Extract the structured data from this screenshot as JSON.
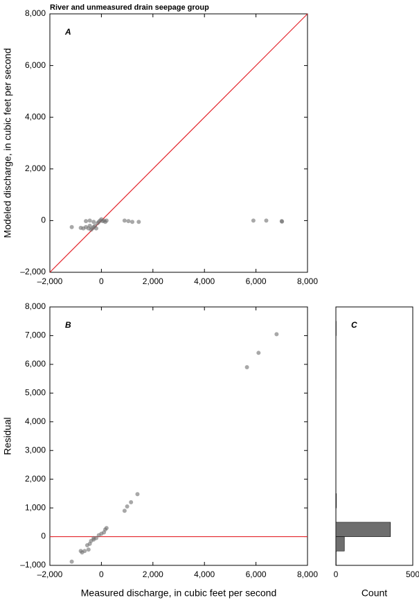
{
  "title": "River and unmeasured drain seepage group",
  "chart_data": [
    {
      "type": "scatter",
      "panel_label": "A",
      "ylabel": "Modeled discharge, in cubic feet per second",
      "xlim": [
        -2000,
        8000
      ],
      "ylim": [
        -2000,
        8000
      ],
      "xticks": [
        {
          "value": -2000,
          "label": "–2,000"
        },
        0,
        {
          "value": 2000,
          "label": "2,000"
        },
        {
          "value": 4000,
          "label": "4,000"
        },
        {
          "value": 6000,
          "label": "6,000"
        },
        {
          "value": 8000,
          "label": "8,000"
        }
      ],
      "yticks": [
        {
          "value": -2000,
          "label": "–2,000"
        },
        0,
        {
          "value": 2000,
          "label": "2,000"
        },
        {
          "value": 4000,
          "label": "4,000"
        },
        {
          "value": 6000,
          "label": "6,000"
        },
        {
          "value": 8000,
          "label": "8,000"
        }
      ],
      "color": "#6e6e6e",
      "reference_color": "#e3242b",
      "x": [
        -1150,
        -800,
        -700,
        -600,
        -500,
        -450,
        -400,
        -350,
        -300,
        -250,
        -200,
        -150,
        -100,
        -50,
        0,
        50,
        100,
        150,
        200,
        -300,
        -600,
        -450,
        900,
        1050,
        1200,
        1450,
        5900,
        6400,
        7000,
        7010
      ],
      "y": [
        -250,
        -280,
        -300,
        -250,
        -300,
        -200,
        -350,
        -300,
        -250,
        -200,
        -300,
        -100,
        -50,
        0,
        50,
        -20,
        0,
        -50,
        0,
        -50,
        -20,
        0,
        0,
        -20,
        -50,
        -50,
        0,
        0,
        -20,
        -40
      ]
    },
    {
      "type": "scatter",
      "panel_label": "B",
      "xlabel": "Measured discharge, in cubic feet per second",
      "ylabel": "Residual",
      "xlim": [
        -2000,
        8000
      ],
      "ylim": [
        -1000,
        8000
      ],
      "xticks": [
        {
          "value": -2000,
          "label": "–2,000"
        },
        0,
        {
          "value": 2000,
          "label": "2,000"
        },
        {
          "value": 4000,
          "label": "4,000"
        },
        {
          "value": 6000,
          "label": "6,000"
        },
        {
          "value": 8000,
          "label": "8,000"
        }
      ],
      "yticks": [
        {
          "value": -1000,
          "label": "–1,000"
        },
        0,
        {
          "value": 1000,
          "label": "1,000"
        },
        {
          "value": 2000,
          "label": "2,000"
        },
        {
          "value": 3000,
          "label": "3,000"
        },
        {
          "value": 4000,
          "label": "4,000"
        },
        {
          "value": 5000,
          "label": "5,000"
        },
        {
          "value": 6000,
          "label": "6,000"
        },
        {
          "value": 7000,
          "label": "7,000"
        },
        {
          "value": 8000,
          "label": "8,000"
        }
      ],
      "color": "#6e6e6e",
      "reference_color": "#e3242b",
      "x": [
        -1150,
        -800,
        -750,
        -650,
        -550,
        -450,
        -400,
        -300,
        -200,
        -100,
        0,
        100,
        150,
        200,
        -500,
        -300,
        900,
        1000,
        1150,
        1400,
        5650,
        6100,
        6800
      ],
      "y": [
        -870,
        -500,
        -550,
        -500,
        -300,
        -250,
        -150,
        -100,
        -50,
        50,
        100,
        150,
        250,
        300,
        -450,
        -50,
        900,
        1050,
        1200,
        1480,
        5900,
        6400,
        7050
      ]
    },
    {
      "type": "histogram",
      "panel_label": "C",
      "xlabel": "Count",
      "xlim": [
        0,
        500
      ],
      "ylim": [
        -1000,
        8000
      ],
      "xticks": [
        0,
        500
      ],
      "color": "#6e6e6e",
      "bins": [
        -1000,
        -500,
        0,
        500,
        1000,
        1500,
        2000,
        2500,
        3000,
        3500,
        4000,
        4500,
        5000,
        5500,
        6000,
        6500,
        7000,
        7500
      ],
      "values": [
        2,
        55,
        355,
        1,
        3,
        0,
        0,
        0,
        0,
        0,
        0,
        0,
        0,
        1,
        1,
        0,
        2
      ]
    }
  ]
}
